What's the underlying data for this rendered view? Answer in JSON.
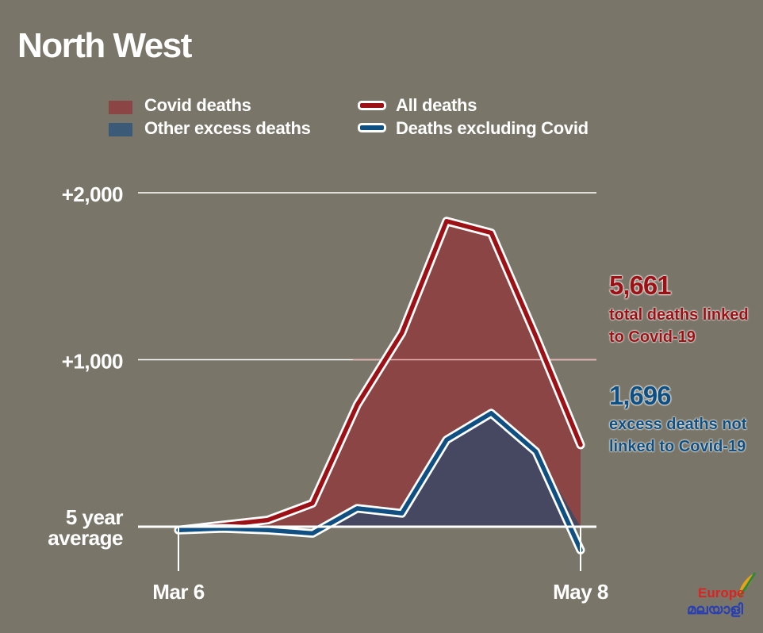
{
  "title": "North West",
  "legend": {
    "covid_deaths": "Covid deaths",
    "other_excess": "Other excess deaths",
    "all_deaths": "All deaths",
    "excluding_covid": "Deaths excluding Covid"
  },
  "annotations": {
    "total_value": "5,661",
    "total_text": "total deaths linked to Covid-19",
    "excess_value": "1,696",
    "excess_text": "excess deaths not linked to Covid-19"
  },
  "logo": {
    "top": "Europe",
    "bottom": "മലയാളി"
  },
  "colors": {
    "background": "#797669",
    "all_deaths_line": "#9b1116",
    "excluding_covid_line": "#0f4f82",
    "covid_area": "#8c4545",
    "other_excess_area": "#464862",
    "gridline": "#ffffff"
  },
  "chart_data": {
    "type": "line",
    "title": "North West",
    "x_tick_labels": [
      "Mar 6",
      "May 8"
    ],
    "y_tick_labels": [
      "5 year average",
      "+1,000",
      "+2,000"
    ],
    "y_ticks": [
      0,
      1000,
      2000
    ],
    "ylim": [
      -200,
      2100
    ],
    "grid": true,
    "legend_position": "top",
    "series": [
      {
        "name": "All deaths",
        "values": [
          -20,
          10,
          40,
          140,
          730,
          1160,
          1830,
          1760,
          1140,
          490
        ]
      },
      {
        "name": "Deaths excluding Covid",
        "values": [
          -20,
          -10,
          -20,
          -40,
          110,
          80,
          520,
          680,
          450,
          -140
        ]
      }
    ]
  }
}
